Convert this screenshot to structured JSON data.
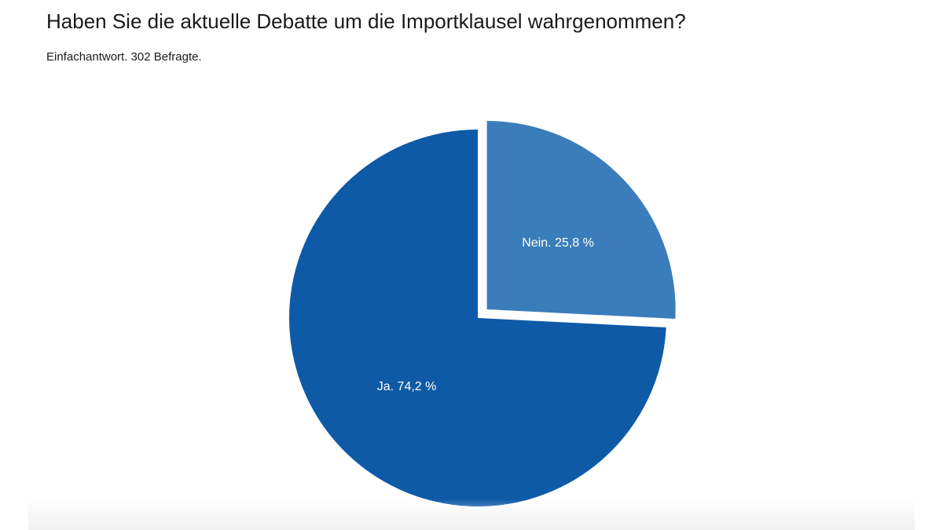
{
  "chart_data": {
    "type": "pie",
    "title": "Haben Sie die aktuelle Debatte um die Importklausel wahrgenommen?",
    "subtitle": "Einfachantwort. 302 Befragte.",
    "slices": [
      {
        "name": "Ja.",
        "value": 74.2,
        "label": "Ja. 74,2 %",
        "color": "#0e5aa7",
        "exploded": false
      },
      {
        "name": "Nein.",
        "value": 25.8,
        "label": "Nein. 25,8 %",
        "color": "#3a7dba",
        "exploded": true
      }
    ],
    "start_angle_deg": 0,
    "direction": "counterclockwise"
  }
}
